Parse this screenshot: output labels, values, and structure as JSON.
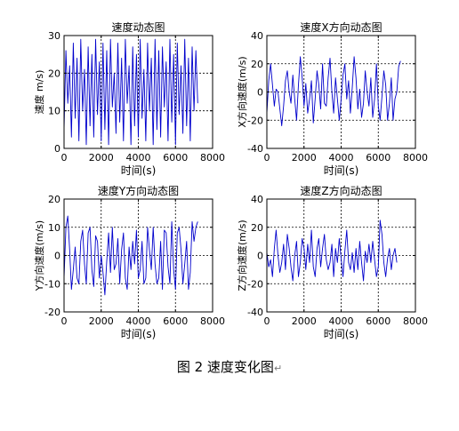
{
  "figure_caption": "图 2  速度变化图",
  "caption_mark": "↵",
  "colors": {
    "line": "#0000cc",
    "axes": "#000000",
    "grid": "#000000"
  },
  "chart_data": [
    {
      "type": "line",
      "title": "速度动态图",
      "xlabel": "时间(s)",
      "ylabel": "速度 m/s)",
      "xlim": [
        0,
        8000
      ],
      "ylim": [
        0,
        30
      ],
      "xticks": [
        0,
        2000,
        4000,
        6000,
        8000
      ],
      "yticks": [
        0,
        10,
        20,
        30
      ],
      "grid": true,
      "series": [
        {
          "x": [
            0,
            100,
            200,
            300,
            400,
            500,
            600,
            700,
            800,
            900,
            1000,
            1100,
            1200,
            1300,
            1400,
            1500,
            1600,
            1700,
            1800,
            1900,
            2000,
            2100,
            2200,
            2300,
            2400,
            2500,
            2600,
            2700,
            2800,
            2900,
            3000,
            3100,
            3200,
            3300,
            3400,
            3500,
            3600,
            3700,
            3800,
            3900,
            4000,
            4100,
            4200,
            4300,
            4400,
            4500,
            4600,
            4700,
            4800,
            4900,
            5000,
            5100,
            5200,
            5300,
            5400,
            5500,
            5600,
            5700,
            5800,
            5900,
            6000,
            6100,
            6200,
            6300,
            6400,
            6500,
            6600,
            6700,
            6800,
            6900,
            7000,
            7100,
            7200
          ],
          "y": [
            5,
            26,
            12,
            22,
            3,
            28,
            8,
            24,
            2,
            29,
            10,
            21,
            1,
            27,
            6,
            25,
            3,
            29,
            9,
            23,
            2,
            28,
            5,
            26,
            1,
            29,
            11,
            20,
            4,
            28,
            7,
            24,
            2,
            29,
            12,
            22,
            1,
            27,
            6,
            25,
            3,
            29,
            8,
            21,
            2,
            28,
            10,
            24,
            1,
            29,
            5,
            26,
            3,
            27,
            11,
            23,
            2,
            29,
            7,
            25,
            1,
            28,
            9,
            22,
            4,
            29,
            6,
            24,
            2,
            27,
            10,
            26,
            12
          ]
        }
      ]
    },
    {
      "type": "line",
      "title": "速度X方向动态图",
      "xlabel": "时间(s)",
      "ylabel": "X方向速度(m/s)",
      "xlim": [
        0,
        8000
      ],
      "ylim": [
        -40,
        40
      ],
      "xticks": [
        0,
        2000,
        4000,
        6000,
        8000
      ],
      "yticks": [
        -40,
        -20,
        0,
        20,
        40
      ],
      "grid": true,
      "series": [
        {
          "x": [
            0,
            100,
            200,
            300,
            400,
            500,
            600,
            700,
            800,
            900,
            1000,
            1100,
            1200,
            1300,
            1400,
            1500,
            1600,
            1700,
            1800,
            1900,
            2000,
            2100,
            2200,
            2300,
            2400,
            2500,
            2600,
            2700,
            2800,
            2900,
            3000,
            3100,
            3200,
            3300,
            3400,
            3500,
            3600,
            3700,
            3800,
            3900,
            4000,
            4100,
            4200,
            4300,
            4400,
            4500,
            4600,
            4700,
            4800,
            4900,
            5000,
            5100,
            5200,
            5300,
            5400,
            5500,
            5600,
            5700,
            5800,
            5900,
            6000,
            6100,
            6200,
            6300,
            6400,
            6500,
            6600,
            6700,
            6800,
            6900,
            7000,
            7100,
            7200
          ],
          "y": [
            -15,
            8,
            20,
            5,
            -10,
            2,
            0,
            -12,
            -24,
            -10,
            8,
            15,
            0,
            -8,
            12,
            -5,
            -20,
            5,
            25,
            10,
            -10,
            6,
            -15,
            -5,
            8,
            -22,
            -5,
            15,
            5,
            -12,
            20,
            -8,
            -10,
            10,
            24,
            0,
            -15,
            10,
            -5,
            -20,
            -5,
            12,
            20,
            -5,
            8,
            -15,
            3,
            25,
            10,
            -12,
            2,
            -18,
            -8,
            15,
            0,
            -10,
            10,
            -18,
            -5,
            20,
            -10,
            -20,
            -3,
            15,
            5,
            -20,
            -8,
            10,
            -20,
            -5,
            0,
            18,
            22
          ]
        }
      ]
    },
    {
      "type": "line",
      "title": "速度Y方向动态图",
      "xlabel": "时间(s)",
      "ylabel": "Y方向速度(m/s)",
      "xlim": [
        0,
        8000
      ],
      "ylim": [
        -20,
        20
      ],
      "xticks": [
        0,
        2000,
        4000,
        6000,
        8000
      ],
      "yticks": [
        -20,
        -10,
        0,
        10,
        20
      ],
      "grid": true,
      "series": [
        {
          "x": [
            0,
            100,
            200,
            300,
            400,
            500,
            600,
            700,
            800,
            900,
            1000,
            1100,
            1200,
            1300,
            1400,
            1500,
            1600,
            1700,
            1800,
            1900,
            2000,
            2100,
            2200,
            2300,
            2400,
            2500,
            2600,
            2700,
            2800,
            2900,
            3000,
            3100,
            3200,
            3300,
            3400,
            3500,
            3600,
            3700,
            3800,
            3900,
            4000,
            4100,
            4200,
            4300,
            4400,
            4500,
            4600,
            4700,
            4800,
            4900,
            5000,
            5100,
            5200,
            5300,
            5400,
            5500,
            5600,
            5700,
            5800,
            5900,
            6000,
            6100,
            6200,
            6300,
            6400,
            6500,
            6600,
            6700,
            6800,
            6900,
            7000,
            7100,
            7200
          ],
          "y": [
            -8,
            10,
            14,
            2,
            -12,
            -5,
            3,
            -8,
            -10,
            5,
            9,
            -3,
            -10,
            8,
            10,
            -5,
            -11,
            7,
            5,
            -8,
            0,
            -6,
            -14,
            -2,
            8,
            -6,
            10,
            -5,
            -3,
            6,
            -10,
            2,
            8,
            -8,
            -12,
            3,
            -5,
            5,
            -3,
            9,
            -8,
            -5,
            5,
            -10,
            -8,
            10,
            2,
            -5,
            10,
            -3,
            -10,
            -8,
            5,
            -12,
            9,
            8,
            -4,
            -10,
            12,
            -5,
            -12,
            8,
            10,
            2,
            -10,
            -3,
            5,
            -12,
            -6,
            12,
            5,
            10,
            12
          ]
        }
      ]
    },
    {
      "type": "line",
      "title": "速度Z方向动态图",
      "xlabel": "时间(s)",
      "ylabel": "Z方向速度(m/s)",
      "xlim": [
        0,
        8000
      ],
      "ylim": [
        -40,
        40
      ],
      "xticks": [
        0,
        2000,
        4000,
        6000,
        8000
      ],
      "yticks": [
        -40,
        -20,
        0,
        20,
        40
      ],
      "grid": true,
      "series": [
        {
          "x": [
            0,
            100,
            200,
            300,
            400,
            500,
            600,
            700,
            800,
            900,
            1000,
            1100,
            1200,
            1300,
            1400,
            1500,
            1600,
            1700,
            1800,
            1900,
            2000,
            2100,
            2200,
            2300,
            2400,
            2500,
            2600,
            2700,
            2800,
            2900,
            3000,
            3100,
            3200,
            3300,
            3400,
            3500,
            3600,
            3700,
            3800,
            3900,
            4000,
            4100,
            4200,
            4300,
            4400,
            4500,
            4600,
            4700,
            4800,
            4900,
            5000,
            5100,
            5200,
            5300,
            5400,
            5500,
            5600,
            5700,
            5800,
            5900,
            6000,
            6100,
            6200,
            6300,
            6400,
            6500,
            6600,
            6700,
            6800,
            6900,
            7000
          ],
          "y": [
            2,
            -8,
            -3,
            -15,
            5,
            18,
            0,
            -12,
            -5,
            8,
            -10,
            15,
            5,
            -8,
            -18,
            0,
            10,
            -15,
            -5,
            12,
            5,
            -10,
            8,
            -5,
            18,
            -8,
            -15,
            5,
            12,
            -8,
            5,
            15,
            -3,
            -10,
            -5,
            8,
            -15,
            5,
            -5,
            12,
            -2,
            -15,
            3,
            18,
            -5,
            -10,
            2,
            -12,
            5,
            -10,
            10,
            -5,
            -18,
            3,
            -5,
            8,
            -5,
            10,
            -3,
            -15,
            -8,
            25,
            15,
            -5,
            -15,
            -2,
            5,
            -10,
            0,
            5,
            -5
          ]
        }
      ]
    }
  ]
}
